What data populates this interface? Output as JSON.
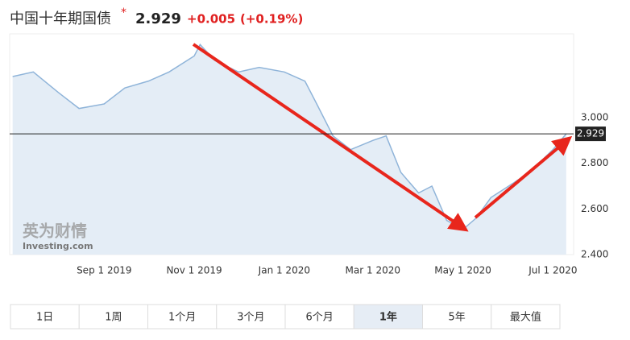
{
  "header": {
    "title": "中国十年期国债",
    "price": "2.929",
    "change": "+0.005",
    "change_pct": "(+0.19%)"
  },
  "chart_data": {
    "type": "area",
    "x": [
      "2019-07-01",
      "2019-07-15",
      "2019-08-01",
      "2019-08-15",
      "2019-09-01",
      "2019-09-15",
      "2019-10-01",
      "2019-10-15",
      "2019-11-01",
      "2019-11-05",
      "2019-11-15",
      "2019-12-01",
      "2019-12-15",
      "2020-01-01",
      "2020-01-15",
      "2020-01-23",
      "2020-02-03",
      "2020-02-15",
      "2020-03-01",
      "2020-03-10",
      "2020-03-20",
      "2020-04-01",
      "2020-04-10",
      "2020-04-20",
      "2020-05-01",
      "2020-05-10",
      "2020-05-20",
      "2020-06-01",
      "2020-06-15",
      "2020-07-01",
      "2020-07-10"
    ],
    "values": [
      3.18,
      3.2,
      3.11,
      3.04,
      3.06,
      3.13,
      3.16,
      3.2,
      3.27,
      3.32,
      3.25,
      3.2,
      3.22,
      3.2,
      3.16,
      3.06,
      2.92,
      2.86,
      2.9,
      2.92,
      2.76,
      2.67,
      2.7,
      2.55,
      2.51,
      2.56,
      2.65,
      2.7,
      2.76,
      2.86,
      2.929
    ],
    "color": "#8fb4d9",
    "fill": "#e4edf6",
    "xlim": [
      "2019-06-29",
      "2020-07-15"
    ],
    "xticks": [
      {
        "value": "2019-09-01",
        "label": "Sep 1 2019"
      },
      {
        "value": "2019-11-01",
        "label": "Nov 1 2019"
      },
      {
        "value": "2020-01-01",
        "label": "Jan 1 2020"
      },
      {
        "value": "2020-03-01",
        "label": "Mar 1 2020"
      },
      {
        "value": "2020-05-01",
        "label": "May 1 2020"
      },
      {
        "value": "2020-07-01",
        "label": "Jul 1 2020"
      }
    ],
    "ylim": [
      2.4,
      3.367
    ],
    "yticks": [
      {
        "value": 2.4,
        "label": "2.400"
      },
      {
        "value": 2.6,
        "label": "2.600"
      },
      {
        "value": 2.8,
        "label": "2.800"
      },
      {
        "value": 3.0,
        "label": "3.000"
      }
    ],
    "reference_line": {
      "value": 2.929,
      "label": "2.929"
    },
    "watermark": {
      "brand": "英为财情",
      "site": "Investing.com"
    }
  },
  "range_buttons": [
    "1日",
    "1周",
    "1个月",
    "3个月",
    "6个月",
    "1年",
    "5年",
    "最大值"
  ],
  "active_range_index": 5
}
